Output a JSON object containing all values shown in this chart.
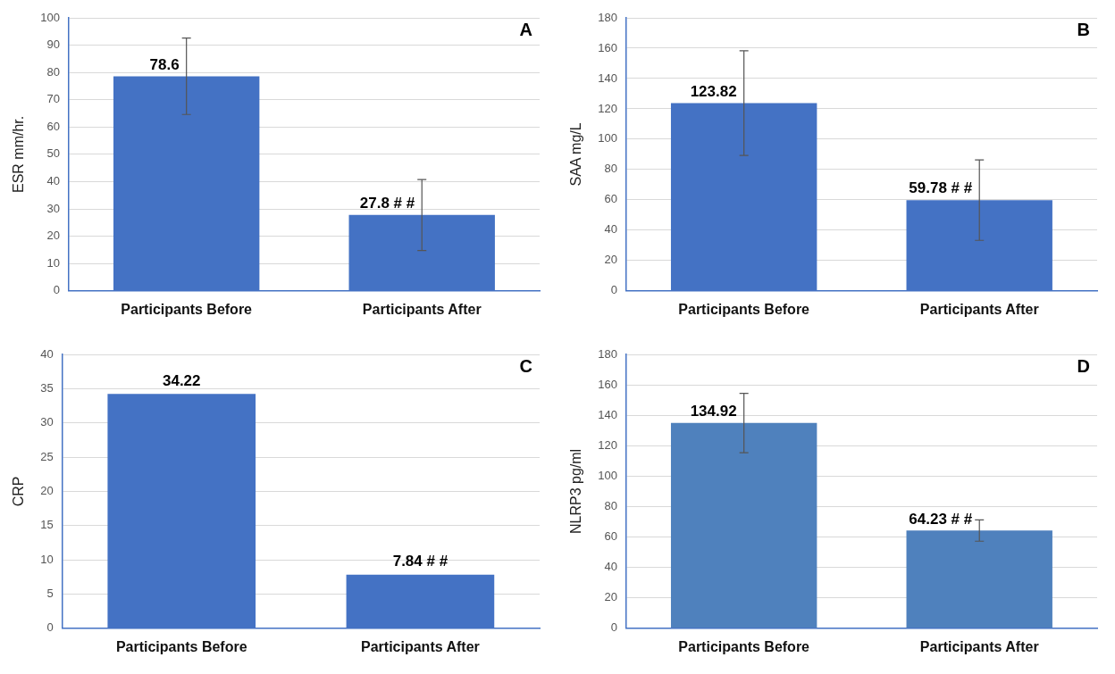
{
  "chart_data": [
    {
      "type": "bar",
      "title": "A",
      "ylabel": "ESR mm/hr.",
      "categories": [
        "Participants Before",
        "Participants After"
      ],
      "values": [
        78.6,
        27.8
      ],
      "errors": [
        14,
        13
      ],
      "value_labels": [
        "78.6",
        "27.8 # #"
      ],
      "color": "#4472c4",
      "ylim": [
        0,
        100
      ],
      "yticks": [
        0,
        10,
        20,
        30,
        40,
        50,
        60,
        70,
        80,
        90,
        100
      ],
      "grid": "y"
    },
    {
      "type": "bar",
      "title": "B",
      "ylabel": "SAA mg/L",
      "categories": [
        "Participants Before",
        "Participants After"
      ],
      "values": [
        123.82,
        59.78
      ],
      "errors": [
        34.5,
        26.5
      ],
      "value_labels": [
        "123.82",
        "59.78 # #"
      ],
      "color": "#4472c4",
      "ylim": [
        0,
        180
      ],
      "yticks": [
        0,
        20,
        40,
        60,
        80,
        100,
        120,
        140,
        160,
        180
      ],
      "grid": "y"
    },
    {
      "type": "bar",
      "title": "C",
      "ylabel": "CRP",
      "categories": [
        "Participants Before",
        "Participants After"
      ],
      "values": [
        34.22,
        7.84
      ],
      "value_labels": [
        "34.22",
        "7.84 # #"
      ],
      "color": "#4472c4",
      "ylim": [
        0,
        40
      ],
      "yticks": [
        0,
        5,
        10,
        15,
        20,
        25,
        30,
        35,
        40
      ],
      "grid": "y"
    },
    {
      "type": "bar",
      "title": "D",
      "ylabel": "NLRP3 pg/ml",
      "categories": [
        "Participants Before",
        "Participants After"
      ],
      "values": [
        134.92,
        64.23
      ],
      "errors": [
        19.5,
        7
      ],
      "value_labels": [
        "134.92",
        "64.23 # #"
      ],
      "color": "#4f81bd",
      "ylim": [
        0,
        180
      ],
      "yticks": [
        0,
        20,
        40,
        60,
        80,
        100,
        120,
        140,
        160,
        180
      ],
      "grid": "y"
    }
  ]
}
